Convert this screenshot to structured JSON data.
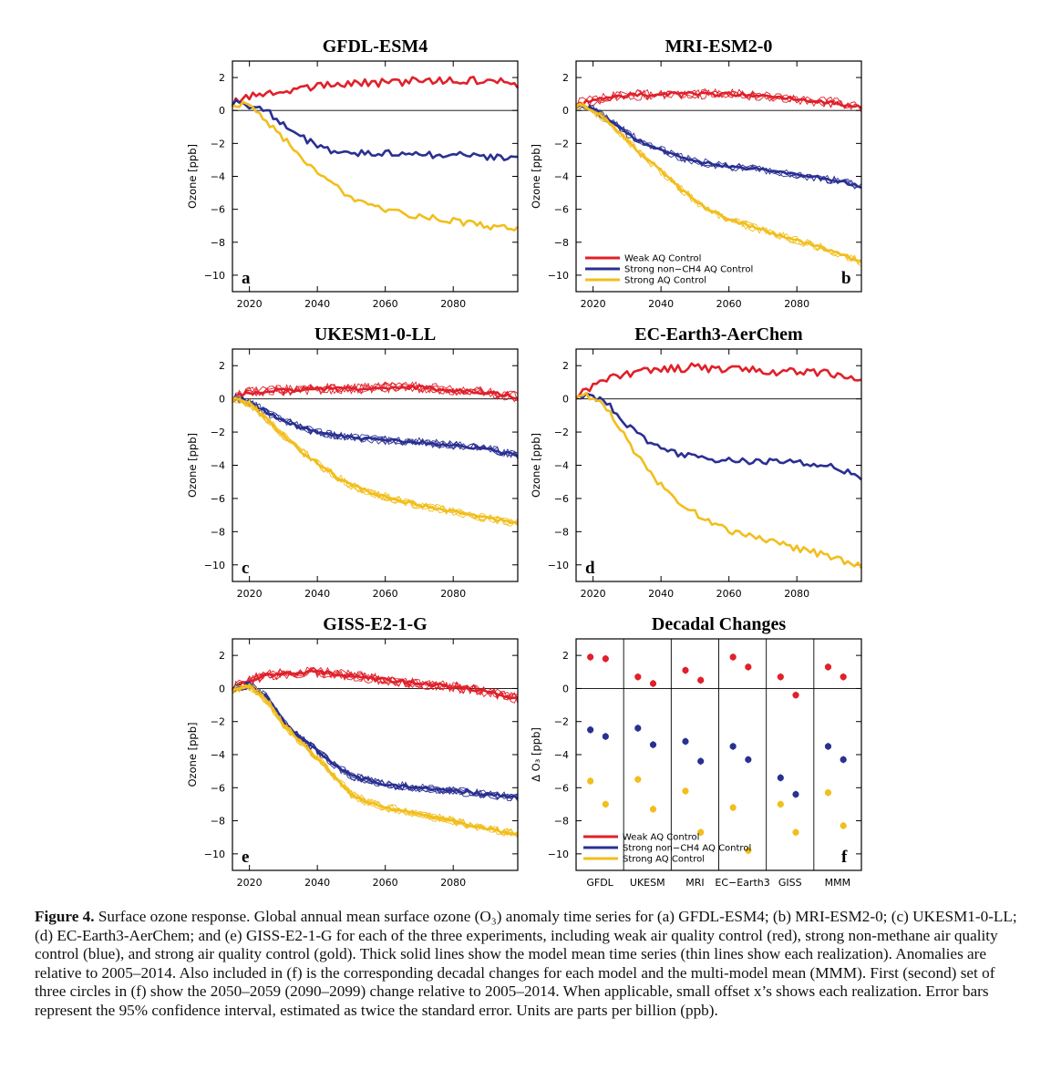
{
  "colors": {
    "weak": "#e0202a",
    "strong_non_ch4": "#2a3092",
    "strong": "#f2be1c",
    "axis": "#000000"
  },
  "legend_labels": {
    "weak": "Weak AQ Control",
    "strong_non_ch4": "Strong non−CH4 AQ Control",
    "strong": "Strong AQ Control"
  },
  "chart_data": [
    {
      "type": "line",
      "id": "a",
      "title": "GFDL-ESM4",
      "ylabel": "Ozone [ppb]",
      "panel_letter": "a",
      "xlim": [
        2015,
        2099
      ],
      "ylim": [
        -11,
        3
      ],
      "xticks": [
        2020,
        2040,
        2060,
        2080
      ],
      "yticks": [
        2,
        0,
        -2,
        -4,
        -6,
        -8,
        -10
      ],
      "yticklabels": [
        "2",
        "0",
        "−2",
        "−4",
        "−6",
        "−8",
        "−10"
      ],
      "realizations": 1,
      "legend": false,
      "series": [
        {
          "key": "weak",
          "x": [
            2015,
            2020,
            2025,
            2030,
            2040,
            2050,
            2060,
            2070,
            2080,
            2090,
            2099
          ],
          "y": [
            0.5,
            0.8,
            1.0,
            1.2,
            1.5,
            1.6,
            1.7,
            1.8,
            1.8,
            1.8,
            1.6
          ]
        },
        {
          "key": "strong_non_ch4",
          "x": [
            2015,
            2020,
            2025,
            2030,
            2035,
            2040,
            2045,
            2050,
            2060,
            2070,
            2080,
            2090,
            2099
          ],
          "y": [
            0.5,
            0.3,
            0.0,
            -0.8,
            -1.6,
            -2.1,
            -2.5,
            -2.6,
            -2.6,
            -2.7,
            -2.7,
            -2.8,
            -3.0
          ]
        },
        {
          "key": "strong",
          "x": [
            2015,
            2020,
            2025,
            2030,
            2035,
            2040,
            2045,
            2050,
            2055,
            2060,
            2070,
            2080,
            2090,
            2099
          ],
          "y": [
            0.5,
            0.2,
            -0.6,
            -1.7,
            -2.8,
            -3.8,
            -4.6,
            -5.3,
            -5.7,
            -6.0,
            -6.4,
            -6.7,
            -7.0,
            -7.2
          ]
        }
      ]
    },
    {
      "type": "line",
      "id": "b",
      "title": "MRI-ESM2-0",
      "ylabel": "Ozone [ppb]",
      "panel_letter": "b",
      "xlim": [
        2015,
        2099
      ],
      "ylim": [
        -11,
        3
      ],
      "xticks": [
        2020,
        2040,
        2060,
        2080
      ],
      "yticks": [
        2,
        0,
        -2,
        -4,
        -6,
        -8,
        -10
      ],
      "yticklabels": [
        "2",
        "0",
        "−2",
        "−4",
        "−6",
        "−8",
        "−10"
      ],
      "realizations": 3,
      "legend": true,
      "series": [
        {
          "key": "weak",
          "x": [
            2015,
            2020,
            2025,
            2030,
            2040,
            2050,
            2060,
            2070,
            2080,
            2090,
            2099
          ],
          "y": [
            0.4,
            0.6,
            0.8,
            0.9,
            1.0,
            1.0,
            1.0,
            0.9,
            0.7,
            0.5,
            0.2
          ]
        },
        {
          "key": "strong_non_ch4",
          "x": [
            2015,
            2020,
            2025,
            2030,
            2035,
            2040,
            2045,
            2050,
            2060,
            2070,
            2080,
            2090,
            2099
          ],
          "y": [
            0.4,
            0.1,
            -0.6,
            -1.4,
            -2.0,
            -2.4,
            -2.8,
            -3.1,
            -3.4,
            -3.6,
            -3.9,
            -4.2,
            -4.6
          ]
        },
        {
          "key": "strong",
          "x": [
            2015,
            2020,
            2025,
            2030,
            2035,
            2040,
            2045,
            2050,
            2055,
            2060,
            2070,
            2080,
            2090,
            2099
          ],
          "y": [
            0.4,
            0.0,
            -0.8,
            -1.8,
            -2.8,
            -3.7,
            -4.6,
            -5.5,
            -6.1,
            -6.6,
            -7.3,
            -7.9,
            -8.5,
            -9.2
          ]
        }
      ]
    },
    {
      "type": "line",
      "id": "c",
      "title": "UKESM1-0-LL",
      "ylabel": "Ozone [ppb]",
      "panel_letter": "c",
      "xlim": [
        2015,
        2099
      ],
      "ylim": [
        -11,
        3
      ],
      "xticks": [
        2020,
        2040,
        2060,
        2080
      ],
      "yticks": [
        2,
        0,
        -2,
        -4,
        -6,
        -8,
        -10
      ],
      "yticklabels": [
        "2",
        "0",
        "−2",
        "−4",
        "−6",
        "−8",
        "−10"
      ],
      "realizations": 4,
      "legend": false,
      "series": [
        {
          "key": "weak",
          "x": [
            2015,
            2020,
            2025,
            2030,
            2040,
            2050,
            2060,
            2070,
            2080,
            2090,
            2099
          ],
          "y": [
            0.1,
            0.4,
            0.5,
            0.5,
            0.6,
            0.6,
            0.7,
            0.7,
            0.5,
            0.4,
            0.1
          ]
        },
        {
          "key": "strong_non_ch4",
          "x": [
            2015,
            2020,
            2025,
            2030,
            2035,
            2040,
            2045,
            2050,
            2060,
            2070,
            2080,
            2090,
            2099
          ],
          "y": [
            0.1,
            -0.2,
            -0.8,
            -1.3,
            -1.7,
            -2.0,
            -2.2,
            -2.3,
            -2.5,
            -2.6,
            -2.8,
            -3.0,
            -3.4
          ]
        },
        {
          "key": "strong",
          "x": [
            2015,
            2020,
            2025,
            2030,
            2035,
            2040,
            2045,
            2050,
            2055,
            2060,
            2070,
            2080,
            2090,
            2099
          ],
          "y": [
            0.1,
            -0.3,
            -1.2,
            -2.2,
            -3.1,
            -3.9,
            -4.6,
            -5.2,
            -5.6,
            -5.9,
            -6.4,
            -6.8,
            -7.2,
            -7.5
          ]
        }
      ]
    },
    {
      "type": "line",
      "id": "d",
      "title": "EC-Earth3-AerChem",
      "ylabel": "Ozone [ppb]",
      "panel_letter": "d",
      "xlim": [
        2015,
        2099
      ],
      "ylim": [
        -11,
        3
      ],
      "xticks": [
        2020,
        2040,
        2060,
        2080
      ],
      "yticks": [
        2,
        0,
        -2,
        -4,
        -6,
        -8,
        -10
      ],
      "yticklabels": [
        "2",
        "0",
        "−2",
        "−4",
        "−6",
        "−8",
        "−10"
      ],
      "realizations": 1,
      "legend": false,
      "series": [
        {
          "key": "weak",
          "x": [
            2015,
            2020,
            2025,
            2030,
            2040,
            2050,
            2060,
            2070,
            2080,
            2090,
            2099
          ],
          "y": [
            0.3,
            0.8,
            1.2,
            1.5,
            1.8,
            1.9,
            1.8,
            1.7,
            1.6,
            1.5,
            1.2
          ]
        },
        {
          "key": "strong_non_ch4",
          "x": [
            2015,
            2020,
            2025,
            2030,
            2035,
            2040,
            2045,
            2050,
            2060,
            2070,
            2080,
            2090,
            2099
          ],
          "y": [
            0.3,
            0.2,
            -0.4,
            -1.6,
            -2.4,
            -3.0,
            -3.3,
            -3.5,
            -3.7,
            -3.8,
            -3.8,
            -4.0,
            -4.8
          ]
        },
        {
          "key": "strong",
          "x": [
            2015,
            2020,
            2025,
            2030,
            2035,
            2040,
            2045,
            2050,
            2055,
            2060,
            2070,
            2080,
            2090,
            2099
          ],
          "y": [
            0.3,
            0.1,
            -0.8,
            -2.5,
            -4.0,
            -5.2,
            -6.2,
            -6.9,
            -7.4,
            -7.9,
            -8.5,
            -9.0,
            -9.5,
            -10.1
          ]
        }
      ]
    },
    {
      "type": "line",
      "id": "e",
      "title": "GISS-E2-1-G",
      "ylabel": "Ozone [ppb]",
      "panel_letter": "e",
      "xlim": [
        2015,
        2099
      ],
      "ylim": [
        -11,
        3
      ],
      "xticks": [
        2020,
        2040,
        2060,
        2080
      ],
      "yticks": [
        2,
        0,
        -2,
        -4,
        -6,
        -8,
        -10
      ],
      "yticklabels": [
        "2",
        "0",
        "−2",
        "−4",
        "−6",
        "−8",
        "−10"
      ],
      "realizations": 5,
      "legend": false,
      "series": [
        {
          "key": "weak",
          "x": [
            2015,
            2020,
            2025,
            2030,
            2040,
            2050,
            2060,
            2070,
            2080,
            2090,
            2099
          ],
          "y": [
            0.0,
            0.5,
            0.8,
            0.9,
            1.0,
            0.8,
            0.5,
            0.3,
            0.1,
            -0.2,
            -0.6
          ]
        },
        {
          "key": "strong_non_ch4",
          "x": [
            2015,
            2020,
            2025,
            2030,
            2035,
            2040,
            2045,
            2050,
            2060,
            2070,
            2080,
            2090,
            2099
          ],
          "y": [
            0.0,
            0.2,
            -0.5,
            -2.0,
            -3.0,
            -3.8,
            -4.6,
            -5.3,
            -5.8,
            -6.0,
            -6.2,
            -6.4,
            -6.6
          ]
        },
        {
          "key": "strong",
          "x": [
            2015,
            2020,
            2025,
            2030,
            2035,
            2040,
            2045,
            2050,
            2055,
            2060,
            2070,
            2080,
            2090,
            2099
          ],
          "y": [
            0.0,
            0.1,
            -0.7,
            -2.2,
            -3.2,
            -4.2,
            -5.3,
            -6.4,
            -6.9,
            -7.2,
            -7.6,
            -8.0,
            -8.5,
            -8.8
          ]
        }
      ]
    },
    {
      "type": "scatter",
      "id": "f",
      "title": "Decadal Changes",
      "ylabel": "Δ O₃ [ppb]",
      "panel_letter": "f",
      "ylim": [
        -11,
        3
      ],
      "yticks": [
        2,
        0,
        -2,
        -4,
        -6,
        -8,
        -10
      ],
      "yticklabels": [
        "2",
        "0",
        "−2",
        "−4",
        "−6",
        "−8",
        "−10"
      ],
      "categories": [
        "GFDL",
        "UKESM",
        "MRI",
        "EC−Earth3",
        "GISS",
        "MMM"
      ],
      "legend": true,
      "series": [
        {
          "key": "weak",
          "period": "2050–2059",
          "values": [
            1.9,
            0.7,
            1.1,
            1.9,
            0.7,
            1.3
          ]
        },
        {
          "key": "weak",
          "period": "2090–2099",
          "values": [
            1.8,
            0.3,
            0.5,
            1.3,
            -0.4,
            0.7
          ]
        },
        {
          "key": "strong_non_ch4",
          "period": "2050–2059",
          "values": [
            -2.5,
            -2.4,
            -3.2,
            -3.5,
            -5.4,
            -3.5
          ]
        },
        {
          "key": "strong_non_ch4",
          "period": "2090–2099",
          "values": [
            -2.9,
            -3.4,
            -4.4,
            -4.3,
            -6.4,
            -4.3
          ]
        },
        {
          "key": "strong",
          "period": "2050–2059",
          "values": [
            -5.6,
            -5.5,
            -6.2,
            -7.2,
            -7.0,
            -6.3
          ]
        },
        {
          "key": "strong",
          "period": "2090–2099",
          "values": [
            -7.0,
            -7.3,
            -8.7,
            -9.8,
            -8.7,
            -8.3
          ]
        }
      ]
    }
  ],
  "caption": {
    "label": "Figure 4.",
    "text": " Surface ozone response. Global annual mean surface ozone (O₃) anomaly time series for (a) GFDL-ESM4; (b) MRI-ESM2-0; (c) UKESM1-0-LL; (d) EC-Earth3-AerChem; and (e) GISS-E2-1-G for each of the three experiments, including weak air quality control (red), strong non-methane air quality control (blue), and strong air quality control (gold). Thick solid lines show the model mean time series (thin lines show each realization). Anomalies are relative to 2005–2014. Also included in (f) is the corresponding decadal changes for each model and the multi-model mean (MMM). First (second) set of three circles in (f) show the 2050–2059 (2090–2099) change relative to 2005–2014. When applicable, small offset x’s shows each realization. Error bars represent the 95% confidence interval, estimated as twice the standard error. Units are parts per billion (ppb)."
  }
}
